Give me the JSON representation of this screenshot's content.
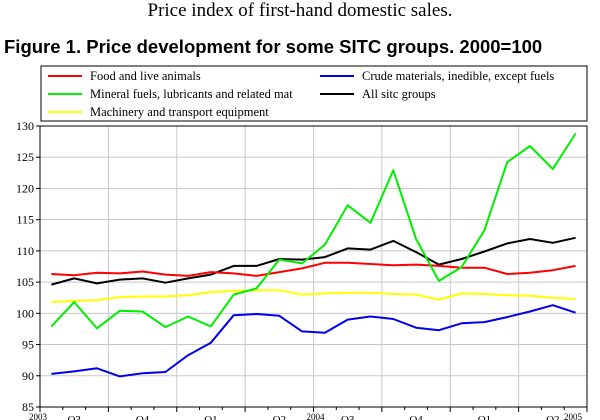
{
  "page": {
    "caption": "Price index of first-hand domestic sales.",
    "figure_title": "Figure 1. Price development for some SITC groups. 2000=100"
  },
  "chart_data": {
    "type": "line",
    "title": "Figure 1. Price development for some SITC groups. 2000=100",
    "xlabel": "",
    "ylabel": "",
    "ylim": [
      85,
      130
    ],
    "yticks": [
      85,
      90,
      95,
      100,
      105,
      110,
      115,
      120,
      125,
      130
    ],
    "grid": true,
    "legend_position": "top",
    "x_period_labels": [
      "Q3",
      "Q4",
      "Q1",
      "Q2",
      "Q3",
      "Q4",
      "Q1",
      "Q2"
    ],
    "x_year_labels": [
      "2003",
      "2004",
      "2005"
    ],
    "months": 24,
    "series": [
      {
        "name": "Food and live animals",
        "color": "#ff0000",
        "values": [
          106.3,
          106.1,
          106.5,
          106.4,
          106.7,
          106.2,
          106.0,
          106.6,
          106.4,
          106.0,
          106.6,
          107.2,
          108.1,
          108.1,
          107.9,
          107.7,
          107.8,
          107.6,
          107.3,
          107.3,
          106.3,
          106.5,
          106.9,
          107.6
        ]
      },
      {
        "name": "Mineral fuels, lubricants and related mat",
        "color": "#00ee00",
        "values": [
          97.9,
          101.8,
          97.6,
          100.4,
          100.3,
          97.8,
          99.5,
          97.9,
          103.0,
          104.0,
          108.6,
          108.0,
          111.0,
          117.3,
          114.5,
          122.9,
          111.9,
          105.2,
          107.4,
          113.3,
          124.2,
          126.8,
          123.1,
          128.8
        ]
      },
      {
        "name": "Machinery and transport equipment",
        "color": "#ffff00",
        "values": [
          101.8,
          102.0,
          102.1,
          102.6,
          102.7,
          102.7,
          102.9,
          103.4,
          103.6,
          103.7,
          103.7,
          103.0,
          103.2,
          103.3,
          103.3,
          103.1,
          103.0,
          102.2,
          103.2,
          103.1,
          102.9,
          102.8,
          102.5,
          102.3
        ]
      },
      {
        "name": "Crude materials, inedible, except fuels",
        "color": "#0000ee",
        "values": [
          90.3,
          90.7,
          91.2,
          89.9,
          90.4,
          90.6,
          93.3,
          95.3,
          99.7,
          99.9,
          99.6,
          97.1,
          96.9,
          99.0,
          99.5,
          99.1,
          97.7,
          97.3,
          98.4,
          98.6,
          99.4,
          100.3,
          101.3,
          100.1
        ]
      },
      {
        "name": "All sitc groups",
        "color": "#000000",
        "values": [
          104.6,
          105.6,
          104.8,
          105.4,
          105.6,
          104.9,
          105.6,
          106.2,
          107.6,
          107.6,
          108.7,
          108.6,
          109.0,
          110.4,
          110.2,
          111.6,
          109.8,
          107.8,
          108.7,
          109.9,
          111.2,
          111.9,
          111.3,
          112.1
        ]
      }
    ]
  }
}
